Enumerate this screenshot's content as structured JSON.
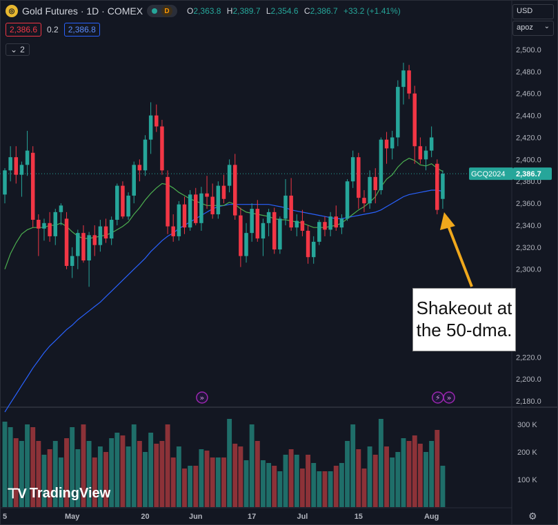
{
  "header": {
    "symbol_title": "Gold Futures · 1D · COMEX",
    "status_letter": "D",
    "ohlc": [
      {
        "k": "O",
        "v": "2,363.8"
      },
      {
        "k": "H",
        "v": "2,389.7"
      },
      {
        "k": "L",
        "v": "2,354.6"
      },
      {
        "k": "C",
        "v": "2,386.7"
      }
    ],
    "change": "+33.2 (+1.41%)",
    "bid": "2,386.6",
    "spread": "0.2",
    "ask": "2,386.8",
    "indicators_collapsed": "2"
  },
  "right_controls": {
    "currency": "USD",
    "scale_mode": "apoz"
  },
  "icons": [
    "gold-logo-icon",
    "market-status-dot-icon",
    "chevron-down-icon",
    "gear-icon",
    "dividend-event-icon",
    "tradingview-logo-icon"
  ],
  "colors": {
    "up": "#26a69a",
    "down": "#f23645",
    "ma_short": "#4caf50",
    "ma_long": "#2962ff",
    "arrow": "#f0a81c"
  },
  "callout": {
    "line1": "Shakeout at",
    "line2": "the 50-dma."
  },
  "branding": "TradingView",
  "chart_data": {
    "type": "candlestick",
    "symbol_label": "GCQ2024",
    "last_price": "2,386.7",
    "price_axis": {
      "range": [
        2175,
        2510
      ],
      "ticks": [
        2180,
        2200,
        2220,
        2300,
        2320,
        2340,
        2360,
        2380,
        2400,
        2420,
        2440,
        2460,
        2480,
        2500
      ],
      "tick_labels": [
        "2,180.0",
        "2,200.0",
        "2,220.0",
        "2,300.0",
        "2,320.0",
        "2,340.0",
        "2,360.0",
        "2,380.0",
        "2,400.0",
        "2,420.0",
        "2,440.0",
        "2,460.0",
        "2,480.0",
        "2,500.0"
      ]
    },
    "volume_axis": {
      "range": [
        0,
        360000
      ],
      "ticks": [
        100000,
        200000,
        300000
      ],
      "tick_labels": [
        "100 K",
        "200 K",
        "300 K"
      ]
    },
    "x_axis": {
      "tick_labels": [
        "5",
        "May",
        "20",
        "Jun",
        "17",
        "Jul",
        "15",
        "Aug"
      ],
      "tick_bar_index": [
        0,
        12,
        25,
        34,
        44,
        53,
        63,
        76
      ]
    },
    "candles": [
      [
        2368,
        2392,
        2360,
        2390,
        310000
      ],
      [
        2390,
        2412,
        2380,
        2402,
        290000
      ],
      [
        2402,
        2412,
        2378,
        2386,
        250000
      ],
      [
        2386,
        2398,
        2366,
        2395,
        240000
      ],
      [
        2395,
        2426,
        2385,
        2408,
        300000
      ],
      [
        2406,
        2412,
        2338,
        2345,
        290000
      ],
      [
        2345,
        2350,
        2312,
        2337,
        240000
      ],
      [
        2337,
        2346,
        2326,
        2342,
        190000
      ],
      [
        2342,
        2352,
        2325,
        2330,
        210000
      ],
      [
        2330,
        2355,
        2322,
        2352,
        240000
      ],
      [
        2352,
        2360,
        2340,
        2358,
        180000
      ],
      [
        2346,
        2352,
        2300,
        2303,
        250000
      ],
      [
        2303,
        2320,
        2292,
        2312,
        290000
      ],
      [
        2312,
        2336,
        2300,
        2333,
        210000
      ],
      [
        2333,
        2340,
        2306,
        2308,
        300000
      ],
      [
        2308,
        2334,
        2284,
        2331,
        240000
      ],
      [
        2331,
        2340,
        2312,
        2322,
        180000
      ],
      [
        2322,
        2345,
        2316,
        2339,
        220000
      ],
      [
        2339,
        2346,
        2324,
        2328,
        200000
      ],
      [
        2328,
        2348,
        2322,
        2345,
        250000
      ],
      [
        2345,
        2378,
        2340,
        2376,
        270000
      ],
      [
        2376,
        2380,
        2346,
        2348,
        260000
      ],
      [
        2348,
        2370,
        2345,
        2367,
        220000
      ],
      [
        2367,
        2398,
        2360,
        2395,
        300000
      ],
      [
        2395,
        2400,
        2380,
        2390,
        240000
      ],
      [
        2390,
        2422,
        2385,
        2418,
        200000
      ],
      [
        2418,
        2452,
        2405,
        2440,
        270000
      ],
      [
        2440,
        2450,
        2425,
        2430,
        230000
      ],
      [
        2430,
        2436,
        2386,
        2390,
        240000
      ],
      [
        2384,
        2390,
        2332,
        2339,
        300000
      ],
      [
        2339,
        2350,
        2325,
        2330,
        180000
      ],
      [
        2330,
        2362,
        2326,
        2359,
        220000
      ],
      [
        2359,
        2366,
        2332,
        2338,
        140000
      ],
      [
        2338,
        2372,
        2335,
        2368,
        150000
      ],
      [
        2368,
        2374,
        2340,
        2342,
        150000
      ],
      [
        2342,
        2375,
        2335,
        2369,
        210000
      ],
      [
        2369,
        2385,
        2355,
        2366,
        205000
      ],
      [
        2366,
        2378,
        2346,
        2350,
        180000
      ],
      [
        2350,
        2380,
        2346,
        2376,
        180000
      ],
      [
        2376,
        2386,
        2360,
        2364,
        180000
      ],
      [
        2376,
        2400,
        2370,
        2395,
        320000
      ],
      [
        2395,
        2405,
        2345,
        2349,
        230000
      ],
      [
        2349,
        2356,
        2302,
        2312,
        220000
      ],
      [
        2312,
        2342,
        2306,
        2333,
        170000
      ],
      [
        2333,
        2360,
        2325,
        2355,
        300000
      ],
      [
        2355,
        2363,
        2325,
        2328,
        240000
      ],
      [
        2328,
        2346,
        2312,
        2342,
        170000
      ],
      [
        2342,
        2355,
        2330,
        2352,
        160000
      ],
      [
        2352,
        2356,
        2314,
        2318,
        150000
      ],
      [
        2318,
        2348,
        2314,
        2346,
        130000
      ],
      [
        2346,
        2382,
        2340,
        2367,
        190000
      ],
      [
        2367,
        2383,
        2335,
        2338,
        210000
      ],
      [
        2338,
        2350,
        2330,
        2344,
        190000
      ],
      [
        2344,
        2354,
        2330,
        2335,
        140000
      ],
      [
        2335,
        2340,
        2305,
        2311,
        190000
      ],
      [
        2311,
        2330,
        2305,
        2325,
        160000
      ],
      [
        2325,
        2345,
        2322,
        2343,
        130000
      ],
      [
        2343,
        2348,
        2330,
        2336,
        130000
      ],
      [
        2336,
        2352,
        2330,
        2348,
        130000
      ],
      [
        2348,
        2358,
        2335,
        2338,
        150000
      ],
      [
        2338,
        2350,
        2332,
        2346,
        160000
      ],
      [
        2346,
        2382,
        2344,
        2380,
        240000
      ],
      [
        2380,
        2408,
        2374,
        2402,
        300000
      ],
      [
        2402,
        2406,
        2355,
        2365,
        210000
      ],
      [
        2365,
        2372,
        2352,
        2360,
        140000
      ],
      [
        2360,
        2390,
        2355,
        2384,
        220000
      ],
      [
        2384,
        2392,
        2360,
        2372,
        190000
      ],
      [
        2372,
        2420,
        2368,
        2418,
        320000
      ],
      [
        2418,
        2425,
        2396,
        2410,
        220000
      ],
      [
        2410,
        2426,
        2400,
        2420,
        180000
      ],
      [
        2420,
        2472,
        2412,
        2466,
        200000
      ],
      [
        2466,
        2488,
        2450,
        2481,
        250000
      ],
      [
        2481,
        2486,
        2455,
        2460,
        240000
      ],
      [
        2460,
        2467,
        2396,
        2412,
        260000
      ],
      [
        2412,
        2420,
        2396,
        2400,
        230000
      ],
      [
        2400,
        2412,
        2390,
        2408,
        200000
      ],
      [
        2408,
        2430,
        2402,
        2420,
        240000
      ],
      [
        2396,
        2400,
        2350,
        2354,
        280000
      ],
      [
        2364,
        2390,
        2355,
        2387,
        150000
      ]
    ],
    "ma_short": [
      2300,
      2314,
      2324,
      2332,
      2336,
      2338,
      2338,
      2338,
      2340,
      2340,
      2342,
      2339,
      2334,
      2330,
      2328,
      2328,
      2329,
      2330,
      2331,
      2333,
      2336,
      2339,
      2343,
      2350,
      2356,
      2363,
      2369,
      2374,
      2378,
      2377,
      2374,
      2370,
      2367,
      2364,
      2362,
      2360,
      2358,
      2358,
      2358,
      2358,
      2361,
      2359,
      2355,
      2352,
      2351,
      2350,
      2349,
      2348,
      2346,
      2345,
      2345,
      2344,
      2343,
      2342,
      2340,
      2338,
      2338,
      2338,
      2339,
      2340,
      2342,
      2346,
      2350,
      2354,
      2357,
      2361,
      2366,
      2375,
      2382,
      2386,
      2393,
      2398,
      2401,
      2399,
      2395,
      2394,
      2396,
      2392,
      2389
    ],
    "ma_long": [
      2170,
      2178,
      2186,
      2194,
      2202,
      2210,
      2217,
      2224,
      2230,
      2235,
      2240,
      2245,
      2249,
      2254,
      2258,
      2262,
      2266,
      2270,
      2275,
      2280,
      2285,
      2290,
      2295,
      2300,
      2305,
      2310,
      2316,
      2321,
      2326,
      2330,
      2333,
      2337,
      2340,
      2343,
      2346,
      2349,
      2352,
      2355,
      2357,
      2358,
      2359,
      2359,
      2359,
      2359,
      2359,
      2359,
      2359,
      2359,
      2358,
      2357,
      2356,
      2354,
      2353,
      2352,
      2351,
      2350,
      2349,
      2348,
      2347,
      2346,
      2346,
      2347,
      2348,
      2349,
      2350,
      2351,
      2352,
      2354,
      2357,
      2360,
      2363,
      2366,
      2368,
      2369,
      2370,
      2371,
      2372,
      2372,
      2371
    ],
    "events": [
      {
        "bar": 35,
        "label": "dividend"
      },
      {
        "bar": 77,
        "label": "split"
      },
      {
        "bar": 79,
        "label": "dividend"
      }
    ],
    "annotation": {
      "text": "Shakeout at the 50-dma.",
      "points_to_bar": 78
    }
  }
}
